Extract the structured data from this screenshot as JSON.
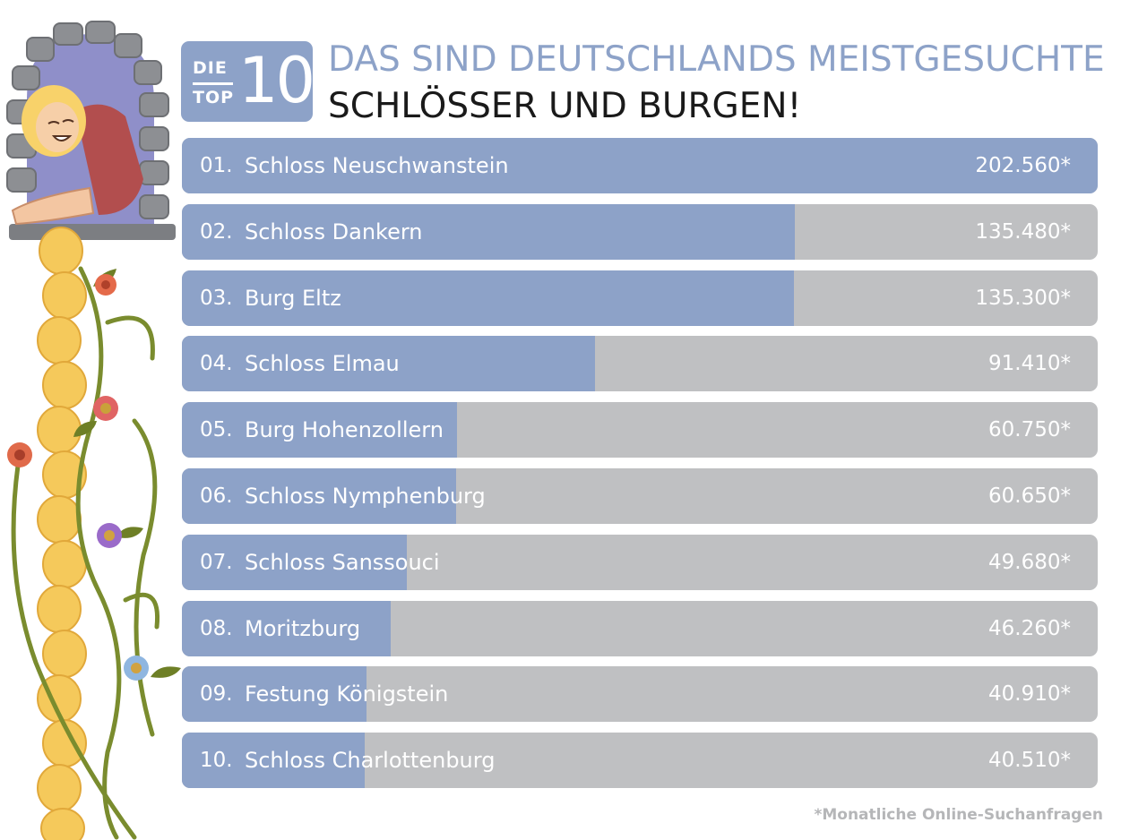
{
  "header": {
    "badge_die": "DIE",
    "badge_top": "TOP",
    "badge_number": "10",
    "title_line1": "DAS SIND DEUTSCHLANDS MEISTGESUCHTE",
    "title_line2": "SCHLÖSSER UND BURGEN!"
  },
  "footnote": "*Monatliche Online-Suchanfragen",
  "colors": {
    "bar_fill": "#8da2c8",
    "bar_track": "#bfc0c2",
    "title_accent": "#8da2c8"
  },
  "chart_data": {
    "type": "bar",
    "orientation": "horizontal",
    "title": "DAS SIND DEUTSCHLANDS MEISTGESUCHTE SCHLÖSSER UND BURGEN!",
    "xlim": [
      0,
      202560
    ],
    "grid": false,
    "legend": "none",
    "ranks": [
      "01.",
      "02.",
      "03.",
      "04.",
      "05.",
      "06.",
      "07.",
      "08.",
      "09.",
      "10."
    ],
    "categories": [
      "Schloss Neuschwanstein",
      "Schloss Dankern",
      "Burg Eltz",
      "Schloss Elmau",
      "Burg Hohenzollern",
      "Schloss Nymphenburg",
      "Schloss Sanssouci",
      "Moritzburg",
      "Festung Königstein",
      "Schloss Charlottenburg"
    ],
    "values": [
      202560,
      135480,
      135300,
      91410,
      60750,
      60650,
      49680,
      46260,
      40910,
      40510
    ],
    "value_labels": [
      "202.560*",
      "135.480*",
      "135.300*",
      "91.410*",
      "60.750*",
      "60.650*",
      "49.680*",
      "46.260*",
      "40.910*",
      "40.510*"
    ]
  }
}
